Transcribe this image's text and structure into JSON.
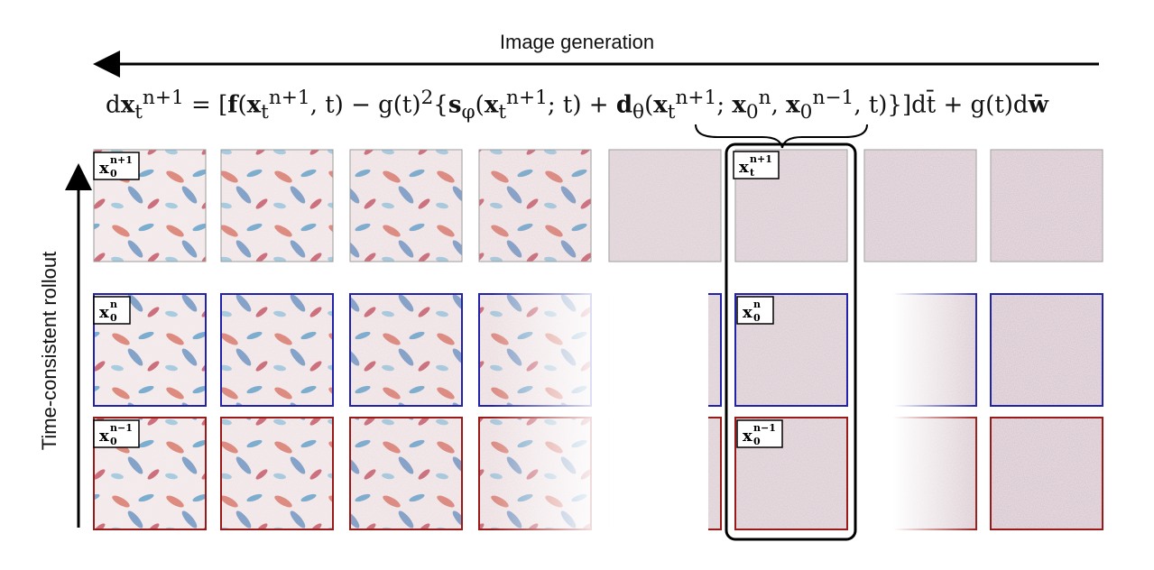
{
  "title_generation": "Image generation",
  "title_rollout": "Time-consistent rollout",
  "equation": "dx_t^{n+1} = [f(x_t^{n+1}, t) − g(t)²{s_φ(x_t^{n+1}; t) + d_θ(x_t^{n+1}; x_0^n, x_0^{n−1}, t)}]dt̄ + g(t)dw̄",
  "rows": [
    {
      "id": "x0-n+1",
      "label": "x_0^{n+1}",
      "border_color": "#9a9a9a"
    },
    {
      "id": "x0-n",
      "label": "x_0^n",
      "border_color": "#2222aa"
    },
    {
      "id": "x0-n-1",
      "label": "x_0^{n-1}",
      "border_color": "#9a1a1a"
    }
  ],
  "highlight_label": "x_t^{n+1}",
  "colors": {
    "red": "#b2182b",
    "blue": "#2166ac",
    "arrow": "#000000"
  }
}
